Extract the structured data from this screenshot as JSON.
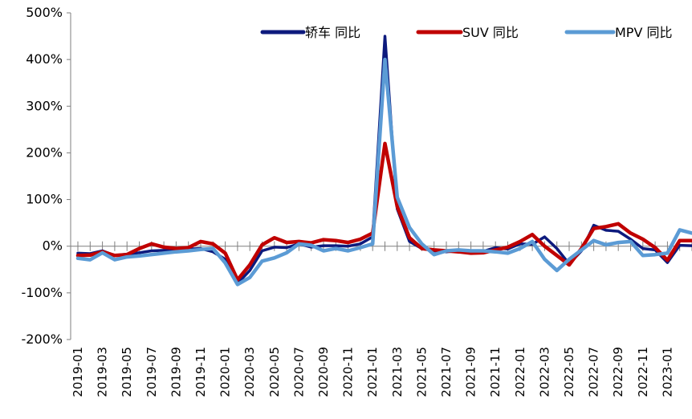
{
  "chart_data": {
    "type": "line",
    "title": "",
    "xlabel": "",
    "ylabel": "",
    "ylim": [
      -200,
      500
    ],
    "yticks": [
      -200,
      -100,
      0,
      100,
      200,
      300,
      400,
      500
    ],
    "ytick_labels": [
      "-200%",
      "-100%",
      "0%",
      "100%",
      "200%",
      "300%",
      "400%",
      "500%"
    ],
    "y_unit": "%",
    "grid": false,
    "legend_position": "top-right",
    "x_label_every": 2,
    "x": [
      "2019-01",
      "2019-02",
      "2019-03",
      "2019-04",
      "2019-05",
      "2019-06",
      "2019-07",
      "2019-08",
      "2019-09",
      "2019-10",
      "2019-11",
      "2019-12",
      "2020-01",
      "2020-02",
      "2020-03",
      "2020-04",
      "2020-05",
      "2020-06",
      "2020-07",
      "2020-08",
      "2020-09",
      "2020-10",
      "2020-11",
      "2020-12",
      "2021-01",
      "2021-02",
      "2021-03",
      "2021-04",
      "2021-05",
      "2021-06",
      "2021-07",
      "2021-08",
      "2021-09",
      "2021-10",
      "2021-11",
      "2021-12",
      "2022-01",
      "2022-02",
      "2022-03",
      "2022-04",
      "2022-05",
      "2022-06",
      "2022-07",
      "2022-08",
      "2022-09",
      "2022-10",
      "2022-11",
      "2022-12",
      "2023-01",
      "2023-02",
      "2023-03"
    ],
    "series": [
      {
        "name": "轿车 同比",
        "color": "#0d1a7d",
        "values": [
          -15,
          -16,
          -10,
          -20,
          -17,
          -14,
          -10,
          -9,
          -8,
          -6,
          -5,
          -12,
          -28,
          -80,
          -52,
          -10,
          -2,
          -3,
          5,
          -2,
          1,
          1,
          0,
          5,
          20,
          450,
          80,
          10,
          -5,
          -10,
          -12,
          -10,
          -12,
          -11,
          -3,
          -6,
          5,
          4,
          20,
          -5,
          -38,
          -10,
          45,
          34,
          32,
          15,
          -5,
          -8,
          -35,
          2,
          1
        ]
      },
      {
        "name": "SUV 同比",
        "color": "#c00000",
        "values": [
          -20,
          -19,
          -12,
          -20,
          -18,
          -5,
          5,
          -2,
          -5,
          -3,
          10,
          5,
          -15,
          -72,
          -40,
          3,
          18,
          8,
          10,
          7,
          14,
          12,
          8,
          15,
          28,
          220,
          85,
          18,
          -5,
          -8,
          -10,
          -12,
          -15,
          -14,
          -8,
          -2,
          10,
          25,
          0,
          -20,
          -40,
          -5,
          38,
          42,
          48,
          28,
          15,
          -3,
          -30,
          12,
          12
        ]
      },
      {
        "name": "MPV 同比",
        "color": "#5b9bd5",
        "values": [
          -26,
          -29,
          -14,
          -29,
          -23,
          -21,
          -18,
          -15,
          -12,
          -10,
          -7,
          -5,
          -36,
          -82,
          -67,
          -32,
          -25,
          -14,
          5,
          2,
          -10,
          -5,
          -10,
          -3,
          5,
          400,
          105,
          40,
          5,
          -18,
          -10,
          -8,
          -10,
          -10,
          -12,
          -15,
          -5,
          10,
          -28,
          -52,
          -28,
          -8,
          12,
          3,
          8,
          10,
          -20,
          -18,
          -15,
          35,
          28
        ]
      }
    ]
  }
}
